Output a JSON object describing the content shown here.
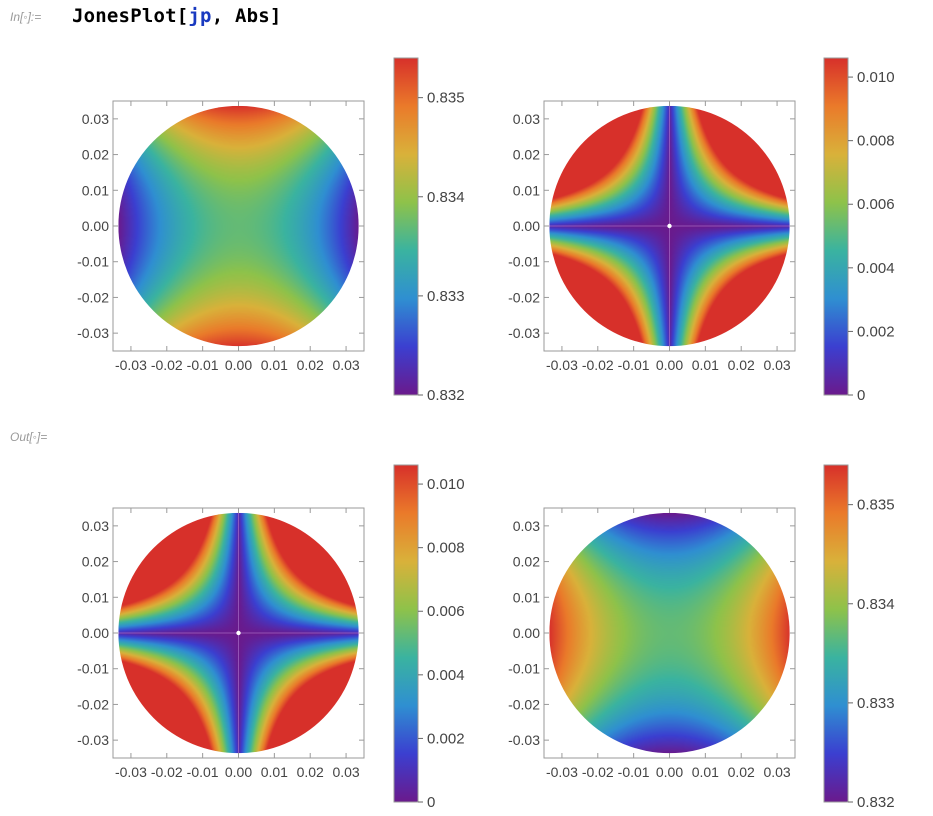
{
  "cell": {
    "in_label": "In[◦]:=",
    "out_label": "Out[◦]=",
    "input": {
      "fn": "JonesPlot",
      "open": "[",
      "arg1": "jp",
      "comma": ", ",
      "arg2": "Abs",
      "close": "]"
    }
  },
  "plots": [
    {
      "name": "top-left",
      "kind": "diag",
      "range": [
        0.832,
        0.8354
      ],
      "ticks": [
        {
          "label": "0.835",
          "v": 0.835
        },
        {
          "label": "0.834",
          "v": 0.834
        },
        {
          "label": "0.833",
          "v": 0.833
        },
        {
          "label": "0.832",
          "v": 0.832
        }
      ]
    },
    {
      "name": "top-right",
      "kind": "cross",
      "range": [
        0,
        0.0106
      ],
      "ticks": [
        {
          "label": "0.010",
          "v": 0.01
        },
        {
          "label": "0.008",
          "v": 0.008
        },
        {
          "label": "0.006",
          "v": 0.006
        },
        {
          "label": "0.004",
          "v": 0.004
        },
        {
          "label": "0.002",
          "v": 0.002
        },
        {
          "label": "0",
          "v": 0
        }
      ]
    },
    {
      "name": "bottom-left",
      "kind": "cross",
      "range": [
        0,
        0.0106
      ],
      "ticks": [
        {
          "label": "0.010",
          "v": 0.01
        },
        {
          "label": "0.008",
          "v": 0.008
        },
        {
          "label": "0.006",
          "v": 0.006
        },
        {
          "label": "0.004",
          "v": 0.004
        },
        {
          "label": "0.002",
          "v": 0.002
        },
        {
          "label": "0",
          "v": 0
        }
      ]
    },
    {
      "name": "bottom-right",
      "kind": "diag-rot",
      "range": [
        0.832,
        0.8354
      ],
      "ticks": [
        {
          "label": "0.835",
          "v": 0.835
        },
        {
          "label": "0.834",
          "v": 0.834
        },
        {
          "label": "0.833",
          "v": 0.833
        },
        {
          "label": "0.832",
          "v": 0.832
        }
      ]
    }
  ],
  "axis": {
    "y_ticks": [
      "0.03",
      "0.02",
      "0.01",
      "0.00",
      "-0.01",
      "-0.02",
      "-0.03"
    ],
    "y_values": [
      0.03,
      0.02,
      0.01,
      0.0,
      -0.01,
      -0.02,
      -0.03
    ],
    "x_ticks": [
      "-0.03",
      "-0.02",
      "-0.01",
      "0.00",
      "0.01",
      "0.02",
      "0.03"
    ],
    "x_values": [
      -0.03,
      -0.02,
      -0.01,
      0.0,
      0.01,
      0.02,
      0.03
    ],
    "range": [
      -0.035,
      0.035
    ]
  },
  "colors": {
    "frame": "#9a9a9a",
    "tick_text": "#444444",
    "rainbow": [
      "#6a1a8c",
      "#3b3fd0",
      "#2f8fd1",
      "#3ab3a0",
      "#8ec24a",
      "#d9b13a",
      "#ea7a2a",
      "#d7302a"
    ]
  }
}
